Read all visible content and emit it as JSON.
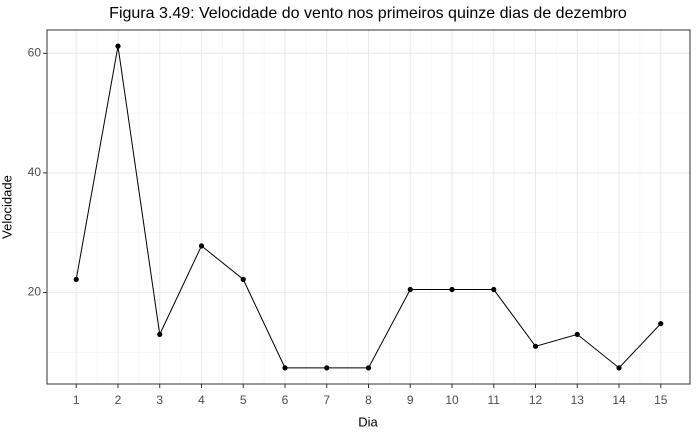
{
  "chart_data": {
    "type": "line",
    "title": "Figura 3.49: Velocidade do vento nos primeiros quinze dias de dezembro",
    "x_label": "Dia",
    "y_label": "Velocidade",
    "x": [
      1,
      2,
      3,
      4,
      5,
      6,
      7,
      8,
      9,
      10,
      11,
      12,
      13,
      14,
      15
    ],
    "series": [
      {
        "name": "Velocidade",
        "color": "#000000",
        "values": [
          22.2,
          61.2,
          13.0,
          27.8,
          22.2,
          7.4,
          7.4,
          7.4,
          20.5,
          20.5,
          20.5,
          11.0,
          13.0,
          7.4,
          14.8
        ]
      }
    ],
    "xlim": [
      0.3,
      15.7
    ],
    "ylim": [
      4.7,
      63.9
    ],
    "xticks": [
      1,
      2,
      3,
      4,
      5,
      6,
      7,
      8,
      9,
      10,
      11,
      12,
      13,
      14,
      15
    ],
    "yticks": [
      20,
      40,
      60
    ],
    "minor_xticks": [
      1.5,
      2.5,
      3.5,
      4.5,
      5.5,
      6.5,
      7.5,
      8.5,
      9.5,
      10.5,
      11.5,
      12.5,
      13.5,
      14.5
    ],
    "minor_yticks": [
      10,
      30,
      50
    ],
    "grid": true
  }
}
